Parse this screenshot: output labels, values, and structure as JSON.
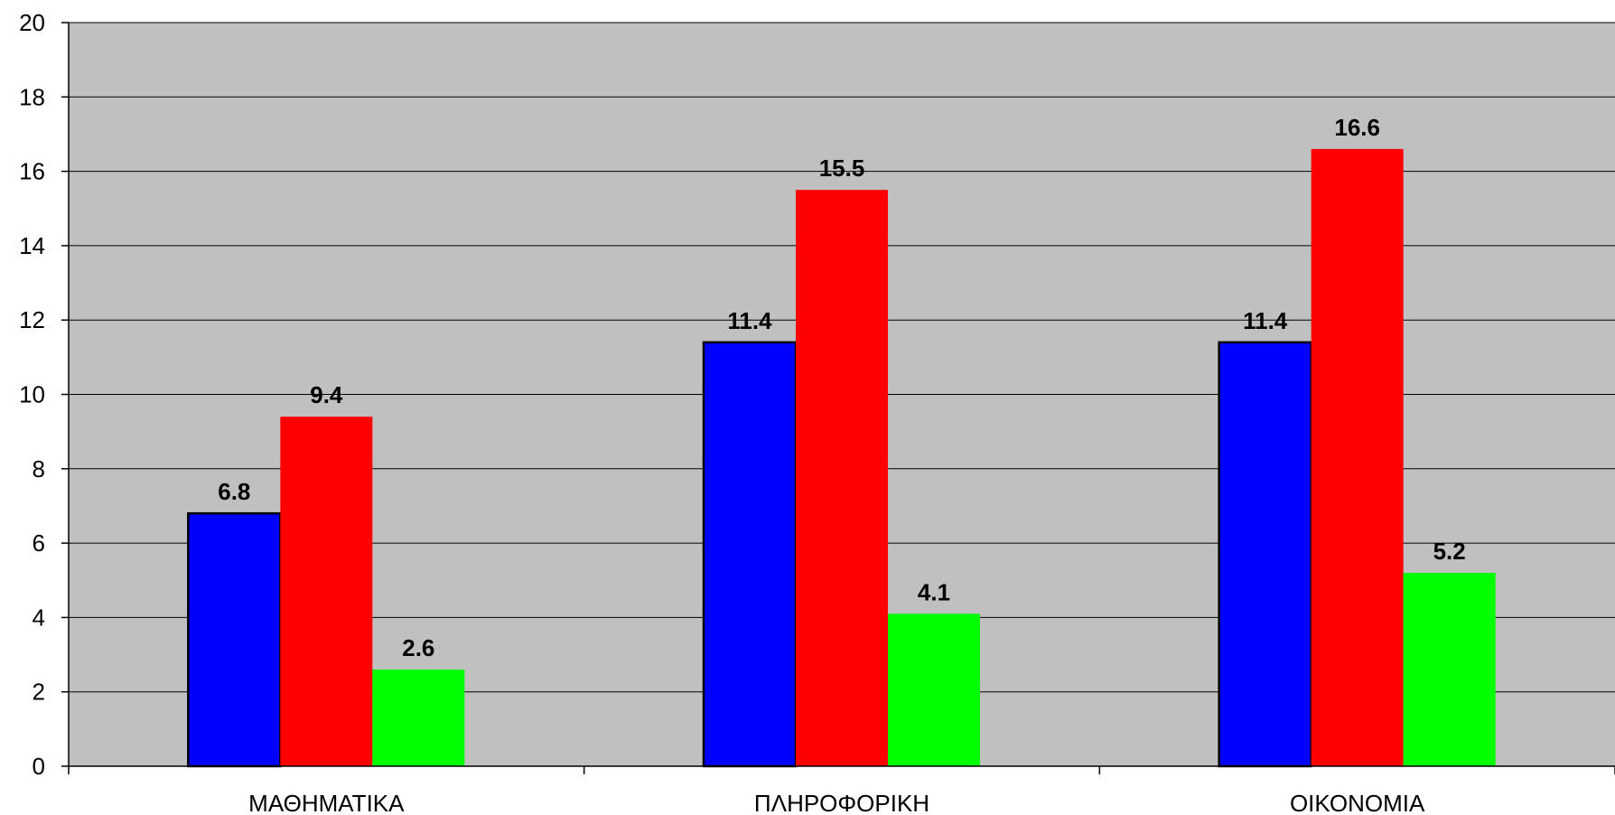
{
  "chart_data": {
    "type": "bar",
    "categories": [
      "ΜΑΘΗΜΑΤΙΚΑ",
      "ΠΛΗΡΟΦΟΡΙΚΗ",
      "ΟΙΚΟΝΟΜΙΑ"
    ],
    "series": [
      {
        "values": [
          6.8,
          11.4,
          11.4
        ],
        "color": "#0000ff"
      },
      {
        "values": [
          9.4,
          15.5,
          16.6
        ],
        "color": "#ff0000"
      },
      {
        "values": [
          2.6,
          4.1,
          5.2
        ],
        "color": "#00ff00"
      }
    ],
    "data_labels": [
      [
        "6.8",
        "11.4",
        "11.4"
      ],
      [
        "9.4",
        "15.5",
        "16.6"
      ],
      [
        "2.6",
        "4.1",
        "5.2"
      ]
    ],
    "y_ticks": [
      "0",
      "2",
      "4",
      "6",
      "8",
      "10",
      "12",
      "14",
      "16",
      "18",
      "20"
    ],
    "ylim": [
      0,
      20
    ],
    "ytick_step": 2,
    "grid": true,
    "plot_background": "#c0c0c0",
    "title": "",
    "xlabel": "",
    "ylabel": ""
  }
}
